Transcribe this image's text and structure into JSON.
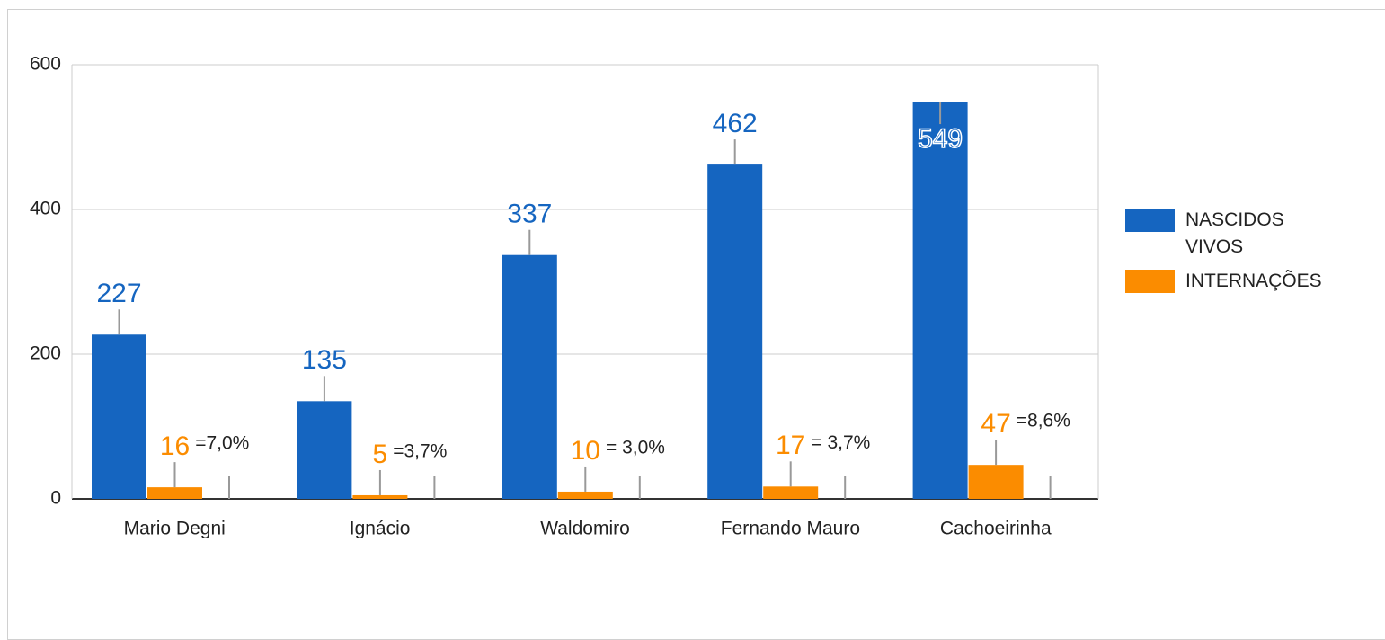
{
  "chart_data": {
    "type": "bar",
    "categories": [
      "Mario Degni",
      "Ignácio",
      "Waldomiro",
      "Fernando Mauro",
      "Cachoeirinha"
    ],
    "series": [
      {
        "name": "NASCIDOS VIVOS",
        "color": "#1565c0",
        "values": [
          227,
          135,
          337,
          462,
          549
        ]
      },
      {
        "name": "INTERNAÇÕES",
        "color": "#fb8c00",
        "values": [
          16,
          5,
          10,
          17,
          47
        ]
      }
    ],
    "annotations": [
      "=7,0%",
      "=3,7%",
      "= 3,0%",
      "= 3,7%",
      "=8,6%"
    ],
    "ylim": [
      0,
      600
    ],
    "yticks": [
      0,
      200,
      400,
      600
    ],
    "grid": true,
    "legend": "right"
  }
}
